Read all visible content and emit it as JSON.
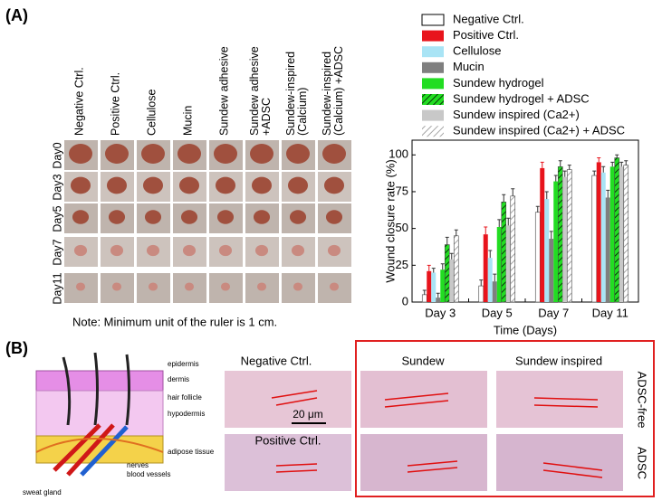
{
  "panel_a": {
    "label": "(A)",
    "columns": [
      [
        "Negative Ctrl."
      ],
      [
        "Positive Ctrl."
      ],
      [
        "Cellulose"
      ],
      [
        "Mucin"
      ],
      [
        "Sundew adhesive"
      ],
      [
        "Sundew adhesive",
        "+ADSC"
      ],
      [
        "Sundew-inspired",
        "(Calcium)"
      ],
      [
        "Sundew-inspired",
        "(Calcium) +ADSC"
      ]
    ],
    "rows": [
      "Day0",
      "Day3",
      "Day5",
      "Day7",
      "Day11"
    ],
    "note": "Note: Minimum unit of the ruler is 1 cm."
  },
  "chart_data": {
    "type": "bar",
    "ylabel": "Wound closure rate (%)",
    "xlabel": "Time (Days)",
    "categories": [
      "Day 3",
      "Day 5",
      "Day 7",
      "Day 11"
    ],
    "ylim": [
      0,
      110
    ],
    "yticks": [
      0,
      25,
      50,
      75,
      100
    ],
    "series": [
      {
        "name": "Negative Ctrl.",
        "color": "#ffffff",
        "hatch": false,
        "values": [
          5,
          11,
          61,
          86
        ],
        "errors": [
          3,
          4,
          4,
          3
        ]
      },
      {
        "name": "Positive Ctrl.",
        "color": "#e8141c",
        "hatch": false,
        "values": [
          21,
          46,
          91,
          95
        ],
        "errors": [
          4,
          5,
          4,
          3
        ]
      },
      {
        "name": "Cellulose",
        "color": "#a9e4f5",
        "hatch": false,
        "values": [
          20,
          30,
          70,
          88
        ],
        "errors": [
          3,
          5,
          5,
          4
        ]
      },
      {
        "name": "Mucin",
        "color": "#7f7f7f",
        "hatch": false,
        "values": [
          3,
          14,
          43,
          71
        ],
        "errors": [
          3,
          5,
          5,
          5
        ]
      },
      {
        "name": "Sundew hydrogel",
        "color": "#22dd22",
        "hatch": false,
        "values": [
          22,
          51,
          82,
          92
        ],
        "errors": [
          4,
          5,
          4,
          3
        ]
      },
      {
        "name": "Sundew hydrogel + ADSC",
        "color": "#22dd22",
        "hatch": true,
        "values": [
          39,
          68,
          92,
          98
        ],
        "errors": [
          5,
          5,
          4,
          2
        ]
      },
      {
        "name": "Sundew inspired (Ca2+)",
        "color": "#c8c8c8",
        "hatch": false,
        "values": [
          29,
          52,
          85,
          92
        ],
        "errors": [
          4,
          5,
          4,
          3
        ]
      },
      {
        "name": "Sundew inspired (Ca2+) + ADSC",
        "color": "#c8c8c8",
        "hatch": true,
        "values": [
          45,
          72,
          90,
          93
        ],
        "errors": [
          4,
          5,
          3,
          3
        ]
      }
    ]
  },
  "panel_b": {
    "label": "(B)",
    "diagram_labels": [
      "epidermis",
      "dermis",
      "hair follicle",
      "hypodermis",
      "adipose tissue",
      "nerves",
      "blood vessels",
      "sweat gland"
    ],
    "titles": [
      "Negative Ctrl.",
      "Positive Ctrl.",
      "Sundew",
      "Sundew inspired"
    ],
    "row_labels": [
      "ADSC-free",
      "ADSC"
    ],
    "scale": "20 μm"
  }
}
